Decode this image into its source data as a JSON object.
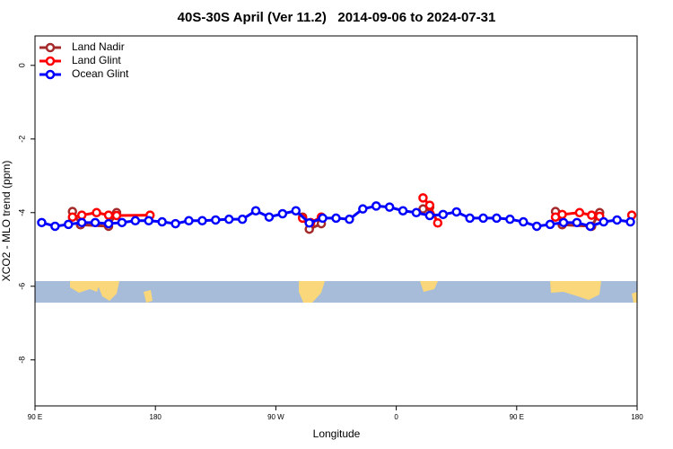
{
  "chart_data": {
    "type": "line",
    "title": "40S-30S April (Ver 11.2)   2014-09-06 to 2024-07-31",
    "xlabel": "Longitude",
    "ylabel": "XCO2 - MLO trend (ppm)",
    "xlim": [
      90,
      540
    ],
    "xticks": [
      {
        "value": 90,
        "label": "90 E"
      },
      {
        "value": 180,
        "label": "180"
      },
      {
        "value": 270,
        "label": "90 W"
      },
      {
        "value": 360,
        "label": "0"
      },
      {
        "value": 450,
        "label": "90 E"
      },
      {
        "value": 540,
        "label": "180"
      }
    ],
    "ylim": [
      -9.25,
      0.8
    ],
    "yticks": [
      0,
      -2,
      -4,
      -6,
      -8
    ],
    "legend": "top-left",
    "series": [
      {
        "name": "Land Nadir",
        "color": "#a52a2a",
        "x": [
          118,
          124,
          145,
          151,
          null,
          290,
          295,
          304,
          null,
          380,
          385,
          null,
          479,
          484,
          506,
          512
        ],
        "values": [
          -3.97,
          -4.33,
          -4.37,
          -4.0,
          null,
          -4.12,
          -4.45,
          -4.3,
          null,
          -3.9,
          -3.85,
          null,
          -3.97,
          -4.33,
          -4.37,
          -4.0
        ]
      },
      {
        "name": "Land Glint",
        "color": "#ff0000",
        "x": [
          118,
          125,
          136,
          145,
          151,
          176,
          null,
          290,
          296,
          304,
          null,
          380,
          385,
          391,
          null,
          479,
          484,
          497,
          506,
          512,
          null,
          536
        ],
        "values": [
          -4.12,
          -4.07,
          -4.0,
          -4.07,
          -4.08,
          -4.07,
          null,
          -4.15,
          -4.27,
          -4.12,
          null,
          -3.6,
          -3.8,
          -4.28,
          null,
          -4.12,
          -4.05,
          -4.0,
          -4.07,
          -4.1,
          null,
          -4.07
        ]
      },
      {
        "name": "Ocean Glint",
        "color": "#0000ff",
        "x": [
          95,
          105,
          115,
          125,
          135,
          145,
          155,
          165,
          175,
          185,
          195,
          205,
          215,
          225,
          235,
          245,
          255,
          265,
          275,
          285,
          295,
          305,
          315,
          325,
          335,
          345,
          355,
          365,
          375,
          385,
          395,
          405,
          415,
          425,
          435,
          445,
          455,
          465,
          475,
          485,
          495,
          505,
          515,
          525,
          535
        ],
        "values": [
          -4.27,
          -4.37,
          -4.32,
          -4.27,
          -4.27,
          -4.3,
          -4.27,
          -4.22,
          -4.22,
          -4.25,
          -4.3,
          -4.22,
          -4.22,
          -4.2,
          -4.18,
          -4.18,
          -3.95,
          -4.12,
          -4.03,
          -3.95,
          -4.28,
          -4.15,
          -4.15,
          -4.18,
          -3.9,
          -3.82,
          -3.85,
          -3.95,
          -4.0,
          -4.08,
          -4.05,
          -3.98,
          -4.15,
          -4.15,
          -4.15,
          -4.18,
          -4.25,
          -4.37,
          -4.32,
          -4.27,
          -4.27,
          -4.37,
          -4.25,
          -4.2,
          -4.25
        ]
      }
    ]
  }
}
